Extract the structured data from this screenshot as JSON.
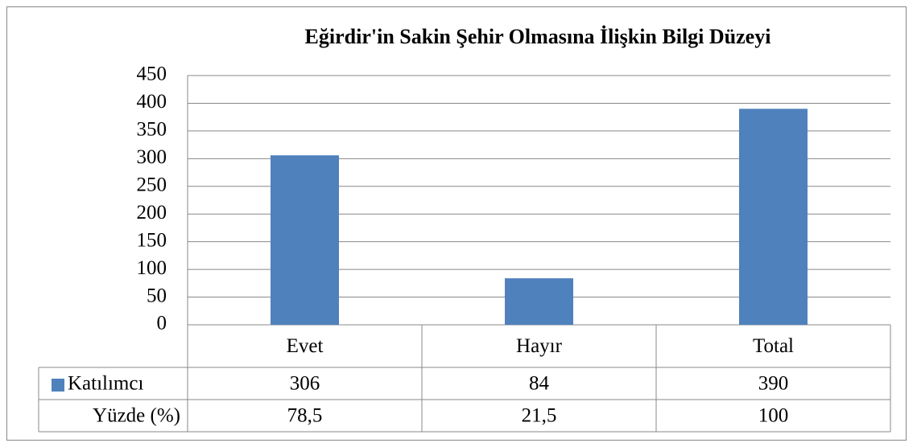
{
  "chart_data": {
    "type": "bar",
    "title": "Eğirdir'in Sakin Şehir Olmasına İlişkin Bilgi Düzeyi",
    "categories": [
      "Evet",
      "Hayır",
      "Total"
    ],
    "series": [
      {
        "name": "Katılımcı",
        "color": "#4f81bd",
        "values": [
          306,
          84,
          390
        ]
      },
      {
        "name": "Yüzde (%)",
        "values": [
          78.5,
          21.5,
          100
        ],
        "value_labels": [
          "78,5",
          "21,5",
          "100"
        ]
      }
    ],
    "ylim": [
      0,
      450
    ],
    "yticks": [
      0,
      50,
      100,
      150,
      200,
      250,
      300,
      350,
      400,
      450
    ],
    "grid": true
  }
}
